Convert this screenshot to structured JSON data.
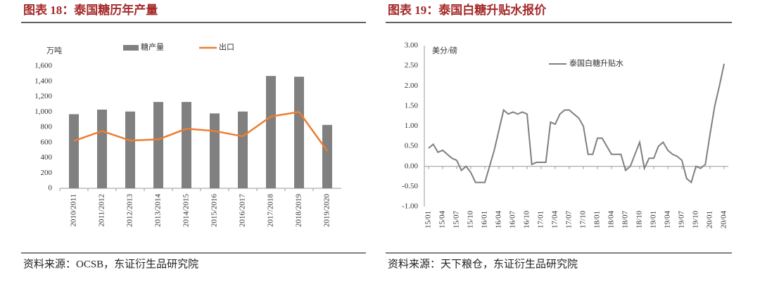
{
  "chart_data": [
    {
      "type": "bar",
      "title": "图表 18：泰国糖历年产量",
      "y_label": "万吨",
      "categories": [
        "2010/2011",
        "2011/2012",
        "2012/2013",
        "2013/2014",
        "2014/2015",
        "2015/2016",
        "2016/2017",
        "2017/2018",
        "2018/2019",
        "2019/2020"
      ],
      "series": [
        {
          "name": "糖产量",
          "type": "bar",
          "color": "#808080",
          "values": [
            970,
            1030,
            1005,
            1130,
            1130,
            980,
            1005,
            1470,
            1460,
            830
          ]
        },
        {
          "name": "出口",
          "type": "line",
          "color": "#ed7d31",
          "values": [
            620,
            750,
            625,
            640,
            780,
            750,
            680,
            940,
            1000,
            490
          ]
        }
      ],
      "ylim": [
        0,
        1600
      ],
      "yticks": [
        0,
        200,
        400,
        600,
        800,
        {
          "value": 1000,
          "label": "1,000"
        },
        {
          "value": 1200,
          "label": "1,200"
        },
        {
          "value": 1400,
          "label": "1,400"
        },
        {
          "value": 1600,
          "label": "1,600"
        }
      ],
      "source": "资料来源：OCSB，东证衍生品研究院"
    },
    {
      "type": "line",
      "title": "图表 19：泰国白糖升贴水报价",
      "y_label": "美分/磅",
      "categories": [
        "15/01",
        null,
        null,
        "15/04",
        null,
        null,
        "15/07",
        null,
        null,
        "15/10",
        null,
        null,
        "16/01",
        null,
        null,
        "16/04",
        null,
        null,
        "16/07",
        null,
        null,
        "16/10",
        null,
        null,
        "17/01",
        null,
        null,
        "17/04",
        null,
        null,
        "17/07",
        null,
        null,
        "17/10",
        null,
        null,
        "18/01",
        null,
        null,
        "18/04",
        null,
        null,
        "18/07",
        null,
        null,
        "18/10",
        null,
        null,
        "19/01",
        null,
        null,
        "19/04",
        null,
        null,
        "19/07",
        null,
        null,
        "19/10",
        null,
        null,
        "20/01",
        null,
        null,
        "20/04"
      ],
      "series": [
        {
          "name": "泰国白糖升贴水",
          "color": "#7f7f7f",
          "values": [
            0.45,
            0.55,
            0.35,
            0.4,
            0.3,
            0.2,
            0.15,
            -0.1,
            0.0,
            -0.15,
            -0.4,
            -0.4,
            -0.4,
            0.0,
            0.4,
            0.9,
            1.4,
            1.3,
            1.35,
            1.3,
            1.35,
            1.3,
            0.05,
            0.1,
            0.1,
            0.1,
            1.1,
            1.05,
            1.3,
            1.4,
            1.4,
            1.3,
            1.2,
            1.0,
            0.3,
            0.3,
            0.7,
            0.7,
            0.5,
            0.3,
            0.3,
            0.3,
            -0.1,
            0.0,
            0.3,
            0.6,
            -0.05,
            0.2,
            0.2,
            0.5,
            0.6,
            0.4,
            0.3,
            0.25,
            0.15,
            -0.3,
            -0.4,
            0.0,
            -0.05,
            0.05,
            0.8,
            1.5,
            2.0,
            2.55
          ]
        }
      ],
      "ylim": [
        -1,
        3
      ],
      "yticks": [
        {
          "value": -1,
          "label": "-1.00"
        },
        {
          "value": -0.5,
          "label": "-0.50"
        },
        {
          "value": 0,
          "label": "0.00"
        },
        {
          "value": 0.5,
          "label": "0.50"
        },
        {
          "value": 1,
          "label": "1.00"
        },
        {
          "value": 1.5,
          "label": "1.50"
        },
        {
          "value": 2,
          "label": "2.00"
        },
        {
          "value": 2.5,
          "label": "2.50"
        },
        {
          "value": 3,
          "label": "3.00"
        }
      ],
      "source": "资料来源：天下粮仓，东证衍生品研究院"
    }
  ]
}
